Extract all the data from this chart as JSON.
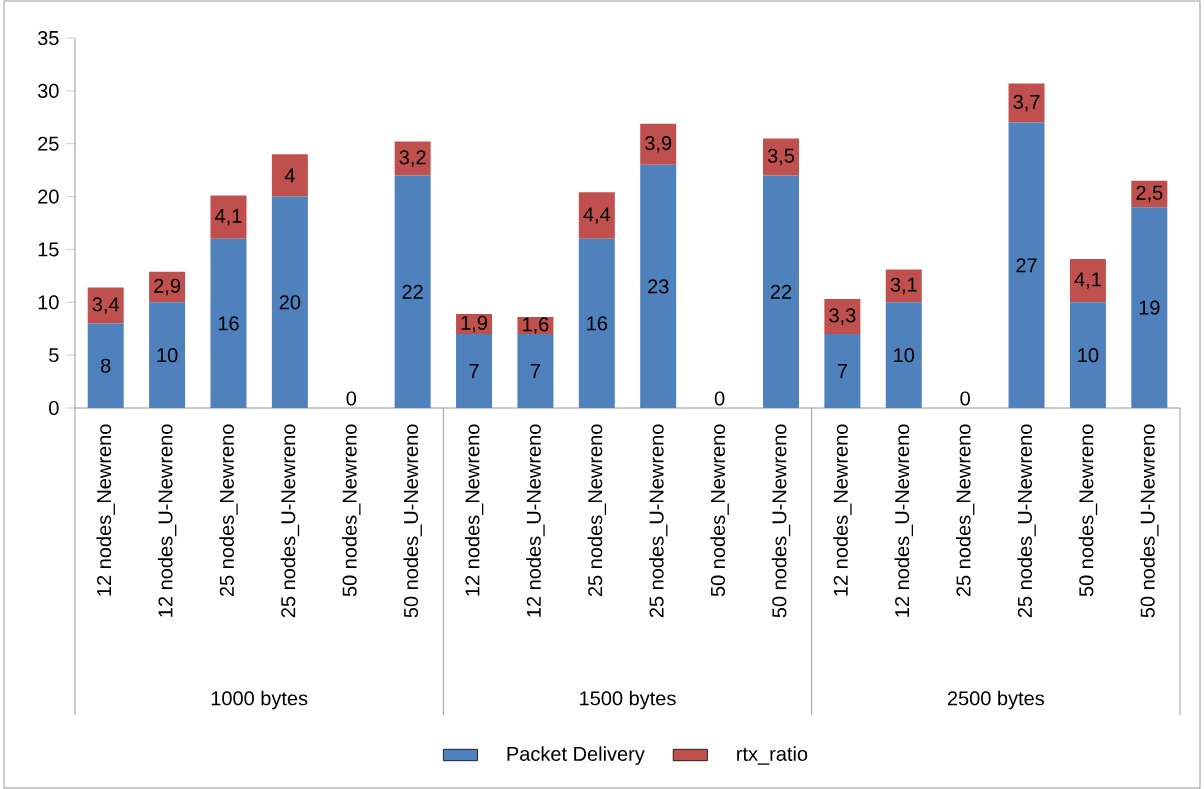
{
  "chart_data": {
    "type": "bar",
    "stacked": true,
    "categories": [
      "12 nodes_Newreno",
      "12 nodes_U-Newreno",
      "25 nodes_Newreno",
      "25 nodes_U-Newreno",
      "50 nodes_Newreno",
      "50 nodes_U-Newreno",
      "12 nodes_Newreno",
      "12 nodes_U-Newreno",
      "25 nodes_Newreno",
      "25 nodes_U-Newreno",
      "50 nodes_Newreno",
      "50 nodes_U-Newreno",
      "12 nodes_Newreno",
      "12 nodes_U-Newreno",
      "25 nodes_Newreno",
      "25 nodes_U-Newreno",
      "50 nodes_Newreno",
      "50 nodes_U-Newreno"
    ],
    "series": [
      {
        "name": "Packet Delivery",
        "color": "#4f81bd",
        "values": [
          8,
          10,
          16,
          20,
          0,
          22,
          7,
          7,
          16,
          23,
          0,
          22,
          7,
          10,
          0,
          27,
          10,
          19
        ],
        "value_labels": [
          "8",
          "10",
          "16",
          "20",
          "0",
          "22",
          "7",
          "7",
          "16",
          "23",
          "0",
          "22",
          "7",
          "10",
          "0",
          "27",
          "10",
          "19"
        ]
      },
      {
        "name": "rtx_ratio",
        "color": "#c0504d",
        "values": [
          3.4,
          2.9,
          4.1,
          4,
          0,
          3.2,
          1.9,
          1.6,
          4.4,
          3.9,
          0,
          3.5,
          3.3,
          3.1,
          0,
          3.7,
          4.1,
          2.5
        ],
        "value_labels": [
          "3,4",
          "2,9",
          "4,1",
          "4",
          null,
          "3,2",
          "1,9",
          "1,6",
          "4,4",
          "3,9",
          null,
          "3,5",
          "3,3",
          "3,1",
          null,
          "3,7",
          "4,1",
          "2,5"
        ]
      }
    ],
    "annotations": [
      "1000 bytes",
      "1500 bytes",
      "2500 bytes"
    ],
    "ylim": [
      0,
      35
    ],
    "yticks": [
      0,
      5,
      10,
      15,
      20,
      25,
      30,
      35
    ],
    "grid": false,
    "legend": "bottom"
  }
}
